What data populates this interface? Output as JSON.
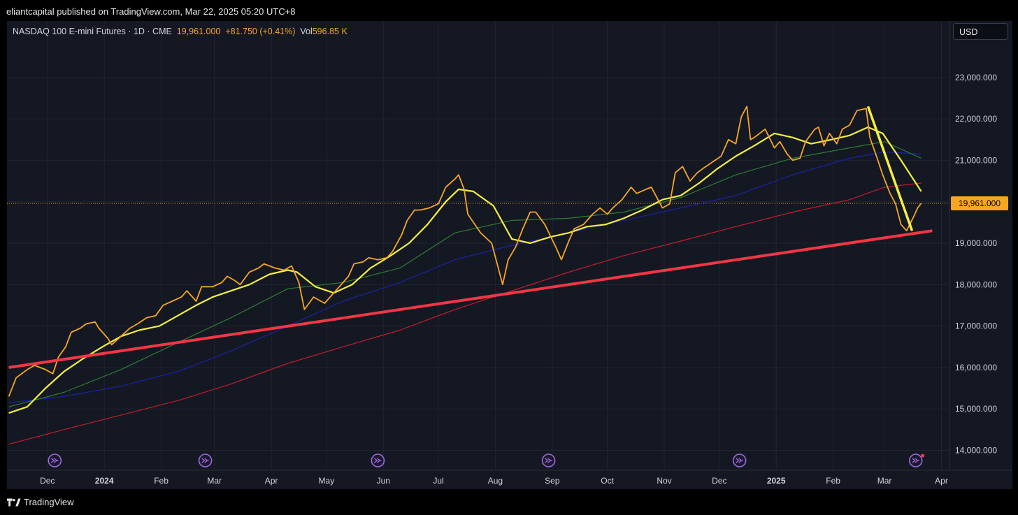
{
  "header": {
    "published_line": "eliantcapital published on TradingView.com, Mar 22, 2025 05:20 UTC+8"
  },
  "legend": {
    "symbol": "NASDAQ 100 E-mini Futures · 1D · CME",
    "close": "19,961.000",
    "change": "+81.750 (+0.41%)",
    "vol_label": "Vol",
    "vol_value": "596.85 K"
  },
  "currency_button": "USD",
  "footer": {
    "brand": "TradingView"
  },
  "colors": {
    "price": "#f7a623",
    "ma_fast": "#f5ef3d",
    "ma_green": "#2e7d32",
    "ma_blue": "#1a22a8",
    "ma_red": "#c41c2c",
    "trendline": "#f23645",
    "downtrend": "#f5ef3d",
    "price_label_bg": "#f7a623",
    "event_icon": "#9c6ade"
  },
  "chart_data": {
    "type": "line",
    "y_axis": {
      "ticks": [
        14000,
        15000,
        16000,
        17000,
        18000,
        19000,
        20000,
        21000,
        22000,
        23000
      ],
      "tick_labels": [
        "14,000.000",
        "15,000.000",
        "16,000.000",
        "17,000.000",
        "18,000.000",
        "19,000.000",
        "20,000.000",
        "21,000.000",
        "22,000.000",
        "23,000.000"
      ],
      "current_price": 19961,
      "current_price_label": "19,961.000"
    },
    "x_axis": {
      "ticks": [
        {
          "label": "Dec",
          "date": "2023-12-01",
          "bold": false
        },
        {
          "label": "2024",
          "date": "2024-01-01",
          "bold": true
        },
        {
          "label": "Feb",
          "date": "2024-02-01",
          "bold": false
        },
        {
          "label": "Mar",
          "date": "2024-03-01",
          "bold": false
        },
        {
          "label": "Apr",
          "date": "2024-04-01",
          "bold": false
        },
        {
          "label": "May",
          "date": "2024-05-01",
          "bold": false
        },
        {
          "label": "Jun",
          "date": "2024-06-01",
          "bold": false
        },
        {
          "label": "Jul",
          "date": "2024-07-01",
          "bold": false
        },
        {
          "label": "Aug",
          "date": "2024-08-01",
          "bold": false
        },
        {
          "label": "Sep",
          "date": "2024-09-01",
          "bold": false
        },
        {
          "label": "Oct",
          "date": "2024-10-01",
          "bold": false
        },
        {
          "label": "Nov",
          "date": "2024-11-01",
          "bold": false
        },
        {
          "label": "Dec",
          "date": "2024-12-01",
          "bold": false
        },
        {
          "label": "2025",
          "date": "2025-01-01",
          "bold": true
        },
        {
          "label": "Feb",
          "date": "2025-02-01",
          "bold": false
        },
        {
          "label": "Mar",
          "date": "2025-03-01",
          "bold": false
        },
        {
          "label": "Apr",
          "date": "2025-04-01",
          "bold": false
        }
      ]
    },
    "series": [
      {
        "key": "price",
        "points": [
          [
            "2023-11-10",
            15300
          ],
          [
            "2023-11-14",
            15750
          ],
          [
            "2023-11-20",
            15950
          ],
          [
            "2023-11-24",
            16050
          ],
          [
            "2023-11-30",
            15950
          ],
          [
            "2023-12-04",
            15850
          ],
          [
            "2023-12-07",
            16250
          ],
          [
            "2023-12-11",
            16500
          ],
          [
            "2023-12-14",
            16850
          ],
          [
            "2023-12-19",
            16950
          ],
          [
            "2023-12-22",
            17050
          ],
          [
            "2023-12-27",
            17100
          ],
          [
            "2023-12-29",
            16950
          ],
          [
            "2024-01-03",
            16700
          ],
          [
            "2024-01-05",
            16550
          ],
          [
            "2024-01-10",
            16750
          ],
          [
            "2024-01-15",
            16950
          ],
          [
            "2024-01-19",
            17050
          ],
          [
            "2024-01-24",
            17200
          ],
          [
            "2024-01-29",
            17250
          ],
          [
            "2024-02-02",
            17500
          ],
          [
            "2024-02-07",
            17600
          ],
          [
            "2024-02-12",
            17700
          ],
          [
            "2024-02-15",
            17850
          ],
          [
            "2024-02-20",
            17600
          ],
          [
            "2024-02-23",
            17950
          ],
          [
            "2024-02-29",
            17950
          ],
          [
            "2024-03-05",
            18050
          ],
          [
            "2024-03-08",
            18200
          ],
          [
            "2024-03-12",
            18100
          ],
          [
            "2024-03-15",
            18000
          ],
          [
            "2024-03-20",
            18300
          ],
          [
            "2024-03-25",
            18400
          ],
          [
            "2024-03-28",
            18500
          ],
          [
            "2024-04-03",
            18400
          ],
          [
            "2024-04-08",
            18350
          ],
          [
            "2024-04-12",
            18450
          ],
          [
            "2024-04-16",
            18050
          ],
          [
            "2024-04-19",
            17400
          ],
          [
            "2024-04-24",
            17700
          ],
          [
            "2024-04-30",
            17550
          ],
          [
            "2024-05-03",
            17700
          ],
          [
            "2024-05-08",
            17950
          ],
          [
            "2024-05-13",
            18200
          ],
          [
            "2024-05-16",
            18500
          ],
          [
            "2024-05-21",
            18550
          ],
          [
            "2024-05-24",
            18650
          ],
          [
            "2024-05-29",
            18600
          ],
          [
            "2024-06-03",
            18650
          ],
          [
            "2024-06-06",
            18800
          ],
          [
            "2024-06-11",
            19200
          ],
          [
            "2024-06-14",
            19550
          ],
          [
            "2024-06-18",
            19800
          ],
          [
            "2024-06-21",
            19800
          ],
          [
            "2024-06-26",
            19850
          ],
          [
            "2024-07-01",
            19950
          ],
          [
            "2024-07-05",
            20350
          ],
          [
            "2024-07-10",
            20550
          ],
          [
            "2024-07-12",
            20650
          ],
          [
            "2024-07-15",
            20300
          ],
          [
            "2024-07-17",
            19700
          ],
          [
            "2024-07-24",
            19250
          ],
          [
            "2024-07-30",
            19000
          ],
          [
            "2024-08-02",
            18500
          ],
          [
            "2024-08-05",
            18000
          ],
          [
            "2024-08-08",
            18600
          ],
          [
            "2024-08-12",
            18900
          ],
          [
            "2024-08-16",
            19350
          ],
          [
            "2024-08-20",
            19750
          ],
          [
            "2024-08-23",
            19750
          ],
          [
            "2024-08-28",
            19450
          ],
          [
            "2024-09-03",
            18900
          ],
          [
            "2024-09-06",
            18600
          ],
          [
            "2024-09-10",
            19050
          ],
          [
            "2024-09-13",
            19350
          ],
          [
            "2024-09-18",
            19450
          ],
          [
            "2024-09-23",
            19700
          ],
          [
            "2024-09-27",
            19850
          ],
          [
            "2024-10-01",
            19700
          ],
          [
            "2024-10-04",
            19850
          ],
          [
            "2024-10-09",
            20050
          ],
          [
            "2024-10-14",
            20350
          ],
          [
            "2024-10-17",
            20200
          ],
          [
            "2024-10-22",
            20300
          ],
          [
            "2024-10-25",
            20350
          ],
          [
            "2024-10-31",
            19850
          ],
          [
            "2024-11-04",
            19950
          ],
          [
            "2024-11-07",
            20700
          ],
          [
            "2024-11-11",
            20850
          ],
          [
            "2024-11-15",
            20500
          ],
          [
            "2024-11-19",
            20700
          ],
          [
            "2024-11-22",
            20800
          ],
          [
            "2024-11-27",
            20950
          ],
          [
            "2024-12-02",
            21100
          ],
          [
            "2024-12-06",
            21500
          ],
          [
            "2024-12-10",
            21400
          ],
          [
            "2024-12-13",
            22050
          ],
          [
            "2024-12-16",
            22300
          ],
          [
            "2024-12-18",
            21500
          ],
          [
            "2024-12-20",
            21550
          ],
          [
            "2024-12-26",
            21750
          ],
          [
            "2024-12-31",
            21300
          ],
          [
            "2025-01-03",
            21450
          ],
          [
            "2025-01-07",
            21150
          ],
          [
            "2025-01-10",
            21000
          ],
          [
            "2025-01-14",
            21050
          ],
          [
            "2025-01-17",
            21450
          ],
          [
            "2025-01-22",
            21750
          ],
          [
            "2025-01-24",
            21800
          ],
          [
            "2025-01-27",
            21350
          ],
          [
            "2025-01-30",
            21650
          ],
          [
            "2025-02-03",
            21400
          ],
          [
            "2025-02-06",
            21750
          ],
          [
            "2025-02-10",
            21850
          ],
          [
            "2025-02-14",
            22200
          ],
          [
            "2025-02-19",
            22250
          ],
          [
            "2025-02-21",
            21550
          ],
          [
            "2025-02-25",
            21050
          ],
          [
            "2025-02-28",
            20650
          ],
          [
            "2025-03-04",
            20200
          ],
          [
            "2025-03-07",
            19950
          ],
          [
            "2025-03-10",
            19450
          ],
          [
            "2025-03-13",
            19300
          ],
          [
            "2025-03-17",
            19650
          ],
          [
            "2025-03-19",
            19850
          ],
          [
            "2025-03-21",
            19961
          ]
        ]
      },
      {
        "key": "ma_fast",
        "points": [
          [
            "2023-11-10",
            14900
          ],
          [
            "2023-11-20",
            15050
          ],
          [
            "2023-11-30",
            15500
          ],
          [
            "2023-12-10",
            15900
          ],
          [
            "2023-12-20",
            16200
          ],
          [
            "2023-12-31",
            16500
          ],
          [
            "2024-01-10",
            16750
          ],
          [
            "2024-01-20",
            16900
          ],
          [
            "2024-01-31",
            17000
          ],
          [
            "2024-02-10",
            17250
          ],
          [
            "2024-02-20",
            17500
          ],
          [
            "2024-02-29",
            17700
          ],
          [
            "2024-03-10",
            17850
          ],
          [
            "2024-03-20",
            18000
          ],
          [
            "2024-03-31",
            18250
          ],
          [
            "2024-04-10",
            18350
          ],
          [
            "2024-04-15",
            18300
          ],
          [
            "2024-04-25",
            17950
          ],
          [
            "2024-05-05",
            17800
          ],
          [
            "2024-05-15",
            18000
          ],
          [
            "2024-05-25",
            18400
          ],
          [
            "2024-06-05",
            18700
          ],
          [
            "2024-06-15",
            19000
          ],
          [
            "2024-06-25",
            19450
          ],
          [
            "2024-07-05",
            20000
          ],
          [
            "2024-07-12",
            20300
          ],
          [
            "2024-07-20",
            20250
          ],
          [
            "2024-07-31",
            19900
          ],
          [
            "2024-08-10",
            19100
          ],
          [
            "2024-08-20",
            19000
          ],
          [
            "2024-08-31",
            19150
          ],
          [
            "2024-09-10",
            19250
          ],
          [
            "2024-09-20",
            19400
          ],
          [
            "2024-09-30",
            19450
          ],
          [
            "2024-10-10",
            19600
          ],
          [
            "2024-10-20",
            19800
          ],
          [
            "2024-10-31",
            20050
          ],
          [
            "2024-11-10",
            20150
          ],
          [
            "2024-11-20",
            20450
          ],
          [
            "2024-11-30",
            20800
          ],
          [
            "2024-12-10",
            21100
          ],
          [
            "2024-12-20",
            21350
          ],
          [
            "2024-12-31",
            21650
          ],
          [
            "2025-01-10",
            21550
          ],
          [
            "2025-01-20",
            21400
          ],
          [
            "2025-01-31",
            21500
          ],
          [
            "2025-02-10",
            21600
          ],
          [
            "2025-02-20",
            21800
          ],
          [
            "2025-02-28",
            21650
          ],
          [
            "2025-03-10",
            21000
          ],
          [
            "2025-03-21",
            20250
          ]
        ]
      },
      {
        "key": "ma_green",
        "points": [
          [
            "2023-11-10",
            15050
          ],
          [
            "2023-12-10",
            15400
          ],
          [
            "2024-01-10",
            15950
          ],
          [
            "2024-02-10",
            16600
          ],
          [
            "2024-03-10",
            17200
          ],
          [
            "2024-04-10",
            17900
          ],
          [
            "2024-05-10",
            18050
          ],
          [
            "2024-06-10",
            18400
          ],
          [
            "2024-07-10",
            19250
          ],
          [
            "2024-08-10",
            19550
          ],
          [
            "2024-09-10",
            19600
          ],
          [
            "2024-10-10",
            19750
          ],
          [
            "2024-11-10",
            20100
          ],
          [
            "2024-12-10",
            20650
          ],
          [
            "2025-01-10",
            21050
          ],
          [
            "2025-02-10",
            21300
          ],
          [
            "2025-03-01",
            21450
          ],
          [
            "2025-03-21",
            21050
          ]
        ]
      },
      {
        "key": "ma_blue",
        "points": [
          [
            "2023-11-10",
            15150
          ],
          [
            "2023-12-10",
            15300
          ],
          [
            "2024-01-10",
            15550
          ],
          [
            "2024-02-10",
            15900
          ],
          [
            "2024-03-10",
            16400
          ],
          [
            "2024-04-10",
            17000
          ],
          [
            "2024-05-10",
            17600
          ],
          [
            "2024-06-10",
            18050
          ],
          [
            "2024-07-10",
            18600
          ],
          [
            "2024-08-10",
            18950
          ],
          [
            "2024-09-10",
            19250
          ],
          [
            "2024-10-10",
            19550
          ],
          [
            "2024-11-10",
            19850
          ],
          [
            "2024-12-10",
            20150
          ],
          [
            "2025-01-10",
            20650
          ],
          [
            "2025-02-10",
            21050
          ],
          [
            "2025-03-01",
            21200
          ],
          [
            "2025-03-21",
            21150
          ]
        ]
      },
      {
        "key": "ma_red",
        "points": [
          [
            "2023-11-10",
            14150
          ],
          [
            "2023-12-10",
            14500
          ],
          [
            "2024-01-10",
            14850
          ],
          [
            "2024-02-10",
            15200
          ],
          [
            "2024-03-10",
            15600
          ],
          [
            "2024-04-10",
            16100
          ],
          [
            "2024-05-10",
            16500
          ],
          [
            "2024-06-10",
            16900
          ],
          [
            "2024-07-10",
            17400
          ],
          [
            "2024-08-10",
            17850
          ],
          [
            "2024-09-10",
            18300
          ],
          [
            "2024-10-10",
            18700
          ],
          [
            "2024-11-10",
            19050
          ],
          [
            "2024-12-10",
            19400
          ],
          [
            "2025-01-10",
            19750
          ],
          [
            "2025-02-10",
            20050
          ],
          [
            "2025-03-01",
            20350
          ],
          [
            "2025-03-21",
            20450
          ]
        ]
      }
    ],
    "drawings": [
      {
        "key": "trendline",
        "from": [
          "2023-11-10",
          16000
        ],
        "to": [
          "2025-03-27",
          19300
        ]
      },
      {
        "key": "downtrend",
        "from": [
          "2025-02-20",
          22300
        ],
        "to": [
          "2025-03-16",
          19300
        ]
      }
    ],
    "event_markers": [
      "2023-12-05",
      "2024-02-25",
      "2024-05-29",
      "2024-08-30",
      "2024-12-12",
      "2025-03-18"
    ]
  }
}
